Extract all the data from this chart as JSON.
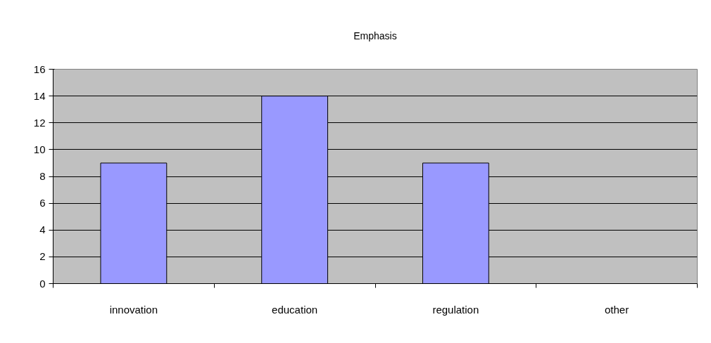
{
  "chart_data": {
    "type": "bar",
    "title": "Emphasis",
    "categories": [
      "innovation",
      "education",
      "regulation",
      "other"
    ],
    "values": [
      9,
      14,
      9,
      null
    ],
    "color": "#9999ff",
    "ylim": [
      0,
      16
    ],
    "yticks": [
      0,
      2,
      4,
      6,
      8,
      10,
      12,
      14,
      16
    ],
    "grid": "y"
  }
}
